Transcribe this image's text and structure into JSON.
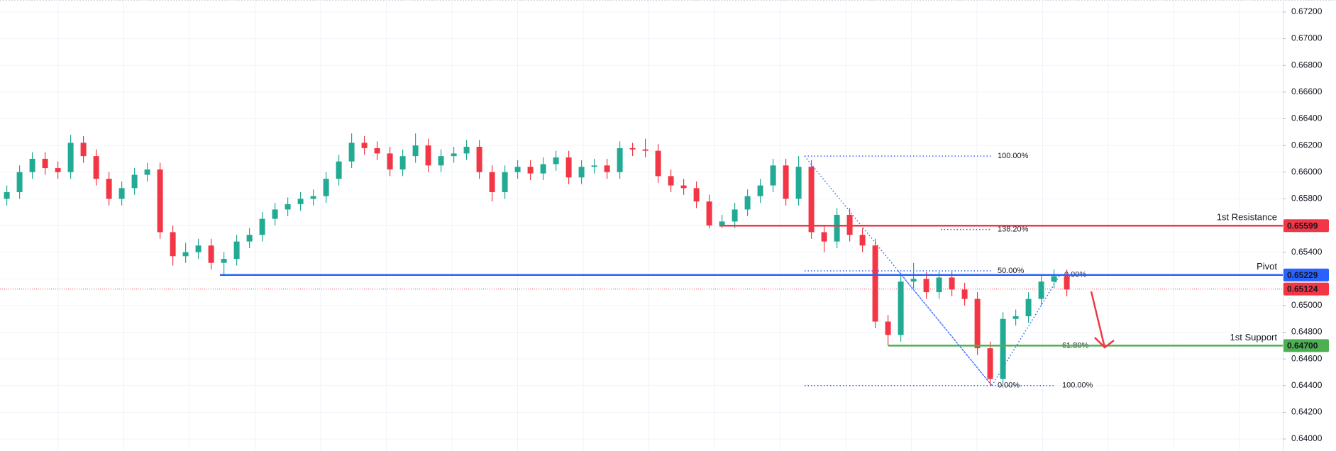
{
  "chart_data": {
    "type": "candlestick",
    "up_color": "#22ab94",
    "down_color": "#f23645",
    "open": [
      0.658,
      0.6585,
      0.66,
      0.661,
      0.6603,
      0.66,
      0.6622,
      0.6612,
      0.6595,
      0.658,
      0.6588,
      0.6598,
      0.6602,
      0.6555,
      0.6537,
      0.654,
      0.6545,
      0.6532,
      0.6535,
      0.6548,
      0.6553,
      0.6565,
      0.6572,
      0.6576,
      0.658,
      0.6582,
      0.6595,
      0.6608,
      0.6622,
      0.6618,
      0.6614,
      0.6602,
      0.6612,
      0.662,
      0.6605,
      0.6612,
      0.6614,
      0.6619,
      0.66,
      0.6585,
      0.66,
      0.6604,
      0.6599,
      0.6606,
      0.6611,
      0.6596,
      0.6604,
      0.6605,
      0.66,
      0.6618,
      0.6617,
      0.6616,
      0.6597,
      0.659,
      0.6588,
      0.6578,
      0.656,
      0.6563,
      0.6572,
      0.6582,
      0.659,
      0.6605,
      0.658,
      0.6604,
      0.6555,
      0.6548,
      0.6568,
      0.6553,
      0.6545,
      0.6488,
      0.6478,
      0.6518,
      0.652,
      0.651,
      0.6521,
      0.6512,
      0.6505,
      0.6468,
      0.6445,
      0.649,
      0.6492,
      0.6505,
      0.6518,
      0.6522
    ],
    "high": [
      0.659,
      0.6605,
      0.6615,
      0.6615,
      0.6608,
      0.6628,
      0.6627,
      0.6617,
      0.66,
      0.6593,
      0.6603,
      0.6607,
      0.6607,
      0.656,
      0.6547,
      0.655,
      0.655,
      0.654,
      0.6553,
      0.6558,
      0.657,
      0.6577,
      0.6581,
      0.6585,
      0.6587,
      0.66,
      0.6613,
      0.6629,
      0.6627,
      0.6623,
      0.6619,
      0.6617,
      0.6629,
      0.6625,
      0.6617,
      0.6619,
      0.6624,
      0.6624,
      0.6605,
      0.6605,
      0.6609,
      0.6609,
      0.6611,
      0.6616,
      0.6616,
      0.6609,
      0.661,
      0.661,
      0.6623,
      0.6622,
      0.6625,
      0.6621,
      0.6602,
      0.6595,
      0.6593,
      0.6583,
      0.6568,
      0.6577,
      0.6587,
      0.6595,
      0.661,
      0.661,
      0.6612,
      0.6609,
      0.656,
      0.6573,
      0.6573,
      0.6558,
      0.655,
      0.6493,
      0.6523,
      0.6532,
      0.6525,
      0.6526,
      0.6526,
      0.6517,
      0.651,
      0.6473,
      0.6495,
      0.6497,
      0.651,
      0.6523,
      0.6527,
      0.6527
    ],
    "low": [
      0.6575,
      0.658,
      0.6595,
      0.6598,
      0.6595,
      0.6595,
      0.6607,
      0.659,
      0.6575,
      0.6575,
      0.6583,
      0.6593,
      0.655,
      0.653,
      0.6532,
      0.6535,
      0.6527,
      0.6522,
      0.653,
      0.6543,
      0.6548,
      0.656,
      0.6567,
      0.6571,
      0.6575,
      0.6577,
      0.659,
      0.6603,
      0.6613,
      0.6609,
      0.6597,
      0.6597,
      0.6607,
      0.66,
      0.66,
      0.6607,
      0.6609,
      0.6595,
      0.6578,
      0.658,
      0.6595,
      0.6594,
      0.6594,
      0.6601,
      0.6591,
      0.6591,
      0.6599,
      0.6595,
      0.6595,
      0.6612,
      0.6611,
      0.6592,
      0.6585,
      0.6583,
      0.6573,
      0.6558,
      0.6558,
      0.6558,
      0.6567,
      0.6577,
      0.6585,
      0.6575,
      0.6575,
      0.655,
      0.654,
      0.6543,
      0.6548,
      0.654,
      0.6483,
      0.647,
      0.6473,
      0.6513,
      0.6505,
      0.6505,
      0.6507,
      0.65,
      0.6463,
      0.644,
      0.644,
      0.6485,
      0.6487,
      0.65,
      0.6513,
      0.6507
    ],
    "close": [
      0.6585,
      0.66,
      0.661,
      0.6603,
      0.66,
      0.6622,
      0.6612,
      0.6595,
      0.658,
      0.6588,
      0.6598,
      0.6602,
      0.6555,
      0.6537,
      0.654,
      0.6545,
      0.6532,
      0.6535,
      0.6548,
      0.6553,
      0.6565,
      0.6572,
      0.6576,
      0.658,
      0.6582,
      0.6595,
      0.6608,
      0.6622,
      0.6618,
      0.6614,
      0.6602,
      0.6612,
      0.662,
      0.6605,
      0.6612,
      0.6614,
      0.6619,
      0.66,
      0.6585,
      0.66,
      0.6604,
      0.6599,
      0.6606,
      0.6611,
      0.6596,
      0.6604,
      0.6605,
      0.66,
      0.6618,
      0.6617,
      0.6616,
      0.6597,
      0.659,
      0.6588,
      0.6578,
      0.656,
      0.6563,
      0.6572,
      0.6582,
      0.659,
      0.6605,
      0.658,
      0.6604,
      0.6555,
      0.6548,
      0.6568,
      0.6553,
      0.6545,
      0.6488,
      0.6478,
      0.6518,
      0.652,
      0.651,
      0.6521,
      0.6512,
      0.6505,
      0.6468,
      0.6445,
      0.649,
      0.6492,
      0.6505,
      0.6518,
      0.6522,
      0.6512
    ],
    "ylim": [
      0.6391,
      0.6729
    ],
    "yticks": [
      {
        "value": 0.672,
        "label": "0.67200"
      },
      {
        "value": 0.67,
        "label": "0.67000"
      },
      {
        "value": 0.668,
        "label": "0.66800"
      },
      {
        "value": 0.666,
        "label": "0.66600"
      },
      {
        "value": 0.664,
        "label": "0.66400"
      },
      {
        "value": 0.662,
        "label": "0.66200"
      },
      {
        "value": 0.66,
        "label": "0.66000"
      },
      {
        "value": 0.658,
        "label": "0.65800"
      },
      {
        "value": 0.656,
        "label": "0.65600"
      },
      {
        "value": 0.654,
        "label": "0.65400"
      },
      {
        "value": 0.652,
        "label": "0.65200"
      },
      {
        "value": 0.65,
        "label": "0.65000"
      },
      {
        "value": 0.648,
        "label": "0.64800"
      },
      {
        "value": 0.646,
        "label": "0.64600"
      },
      {
        "value": 0.644,
        "label": "0.64400"
      },
      {
        "value": 0.642,
        "label": "0.64200"
      },
      {
        "value": 0.64,
        "label": "0.64000"
      }
    ],
    "grid": true,
    "levels": [
      {
        "name": "1st Resistance",
        "value": 0.65599,
        "label": "0.65599",
        "color": "#f23645"
      },
      {
        "name": "Pivot",
        "value": 0.65229,
        "label": "0.65229",
        "color": "#2962ff"
      },
      {
        "name": "1st Support",
        "value": 0.647,
        "label": "0.64700",
        "color": "#4caf50"
      }
    ],
    "current_price": {
      "value": 0.65124,
      "label": "0.65124",
      "color": "#f23645"
    },
    "fib_color": "#2962ff",
    "fib_levels": [
      {
        "label": "100.00%",
        "value": 0.6612
      },
      {
        "label": "138.20%",
        "value": 0.6557
      },
      {
        "label": "50.00%",
        "value": 0.6526
      },
      {
        "label": "0.00%",
        "value": 0.6523
      },
      {
        "label": "61.80%",
        "value": 0.647
      },
      {
        "label": "0.00%",
        "value": 0.644
      },
      {
        "label": "100.00%",
        "value": 0.644
      }
    ]
  }
}
